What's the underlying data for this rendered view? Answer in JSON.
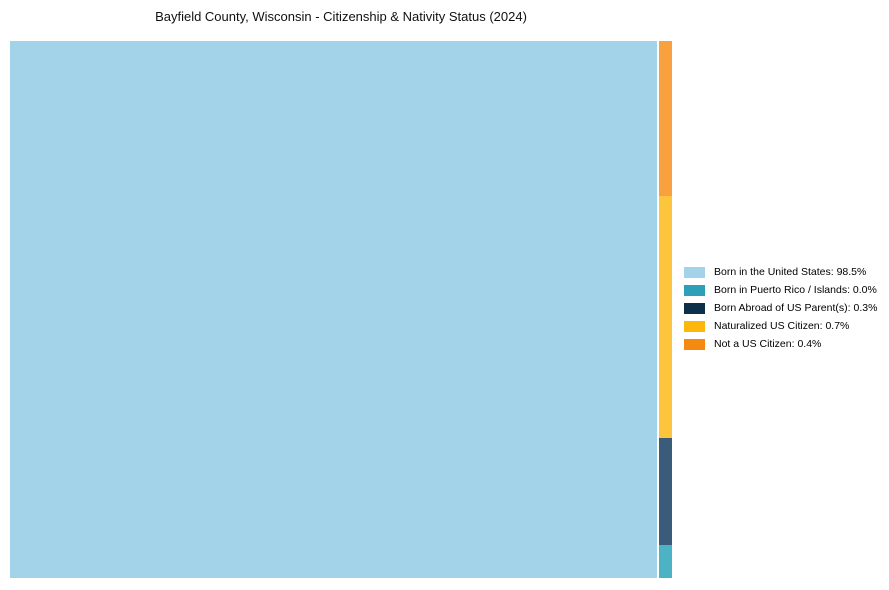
{
  "title": "Bayfield County, Wisconsin - Citizenship & Nativity Status (2024)",
  "legend": {
    "position": "right",
    "items": [
      {
        "label": "Born in the United States: 98.5%",
        "color": "#a3d3e8"
      },
      {
        "label": "Born in Puerto Rico / Islands: 0.0%",
        "color": "#2da0b8"
      },
      {
        "label": "Born Abroad of US Parent(s): 0.3%",
        "color": "#0d2f4a"
      },
      {
        "label": "Naturalized US Citizen: 0.7%",
        "color": "#fdb60a"
      },
      {
        "label": "Not a US Citizen: 0.4%",
        "color": "#f6890f"
      }
    ]
  },
  "chart_data": {
    "type": "treemap",
    "title": "Bayfield County, Wisconsin - Citizenship & Nativity Status (2024)",
    "categories": [
      "Born in the United States",
      "Born in Puerto Rico / Islands",
      "Born Abroad of US Parent(s)",
      "Naturalized US Citizen",
      "Not a US Citizen"
    ],
    "values": [
      98.5,
      0.0,
      0.3,
      0.7,
      0.4
    ],
    "unit": "percent",
    "legend_position": "right",
    "layout": "single large tile at left for dominant category; remaining categories stacked vertically in a thin column at the right edge",
    "tiles": {
      "main": {
        "category": "Born in the United States",
        "value": 98.5,
        "color": "#a3d3e8"
      },
      "strip_top_to_bottom": [
        {
          "category": "Not a US Citizen",
          "value": 0.4,
          "color": "#f9a03f",
          "height_pct": 28.9
        },
        {
          "category": "Naturalized US Citizen",
          "value": 0.7,
          "color": "#fdc53e",
          "height_pct": 45.1
        },
        {
          "category": "Born Abroad of US Parent(s)",
          "value": 0.3,
          "color": "#3a5c7a",
          "height_pct": 19.9
        },
        {
          "category": "Born in Puerto Rico / Islands",
          "value": 0.0,
          "color": "#4cb3c4",
          "height_pct": 6.1
        }
      ]
    }
  }
}
